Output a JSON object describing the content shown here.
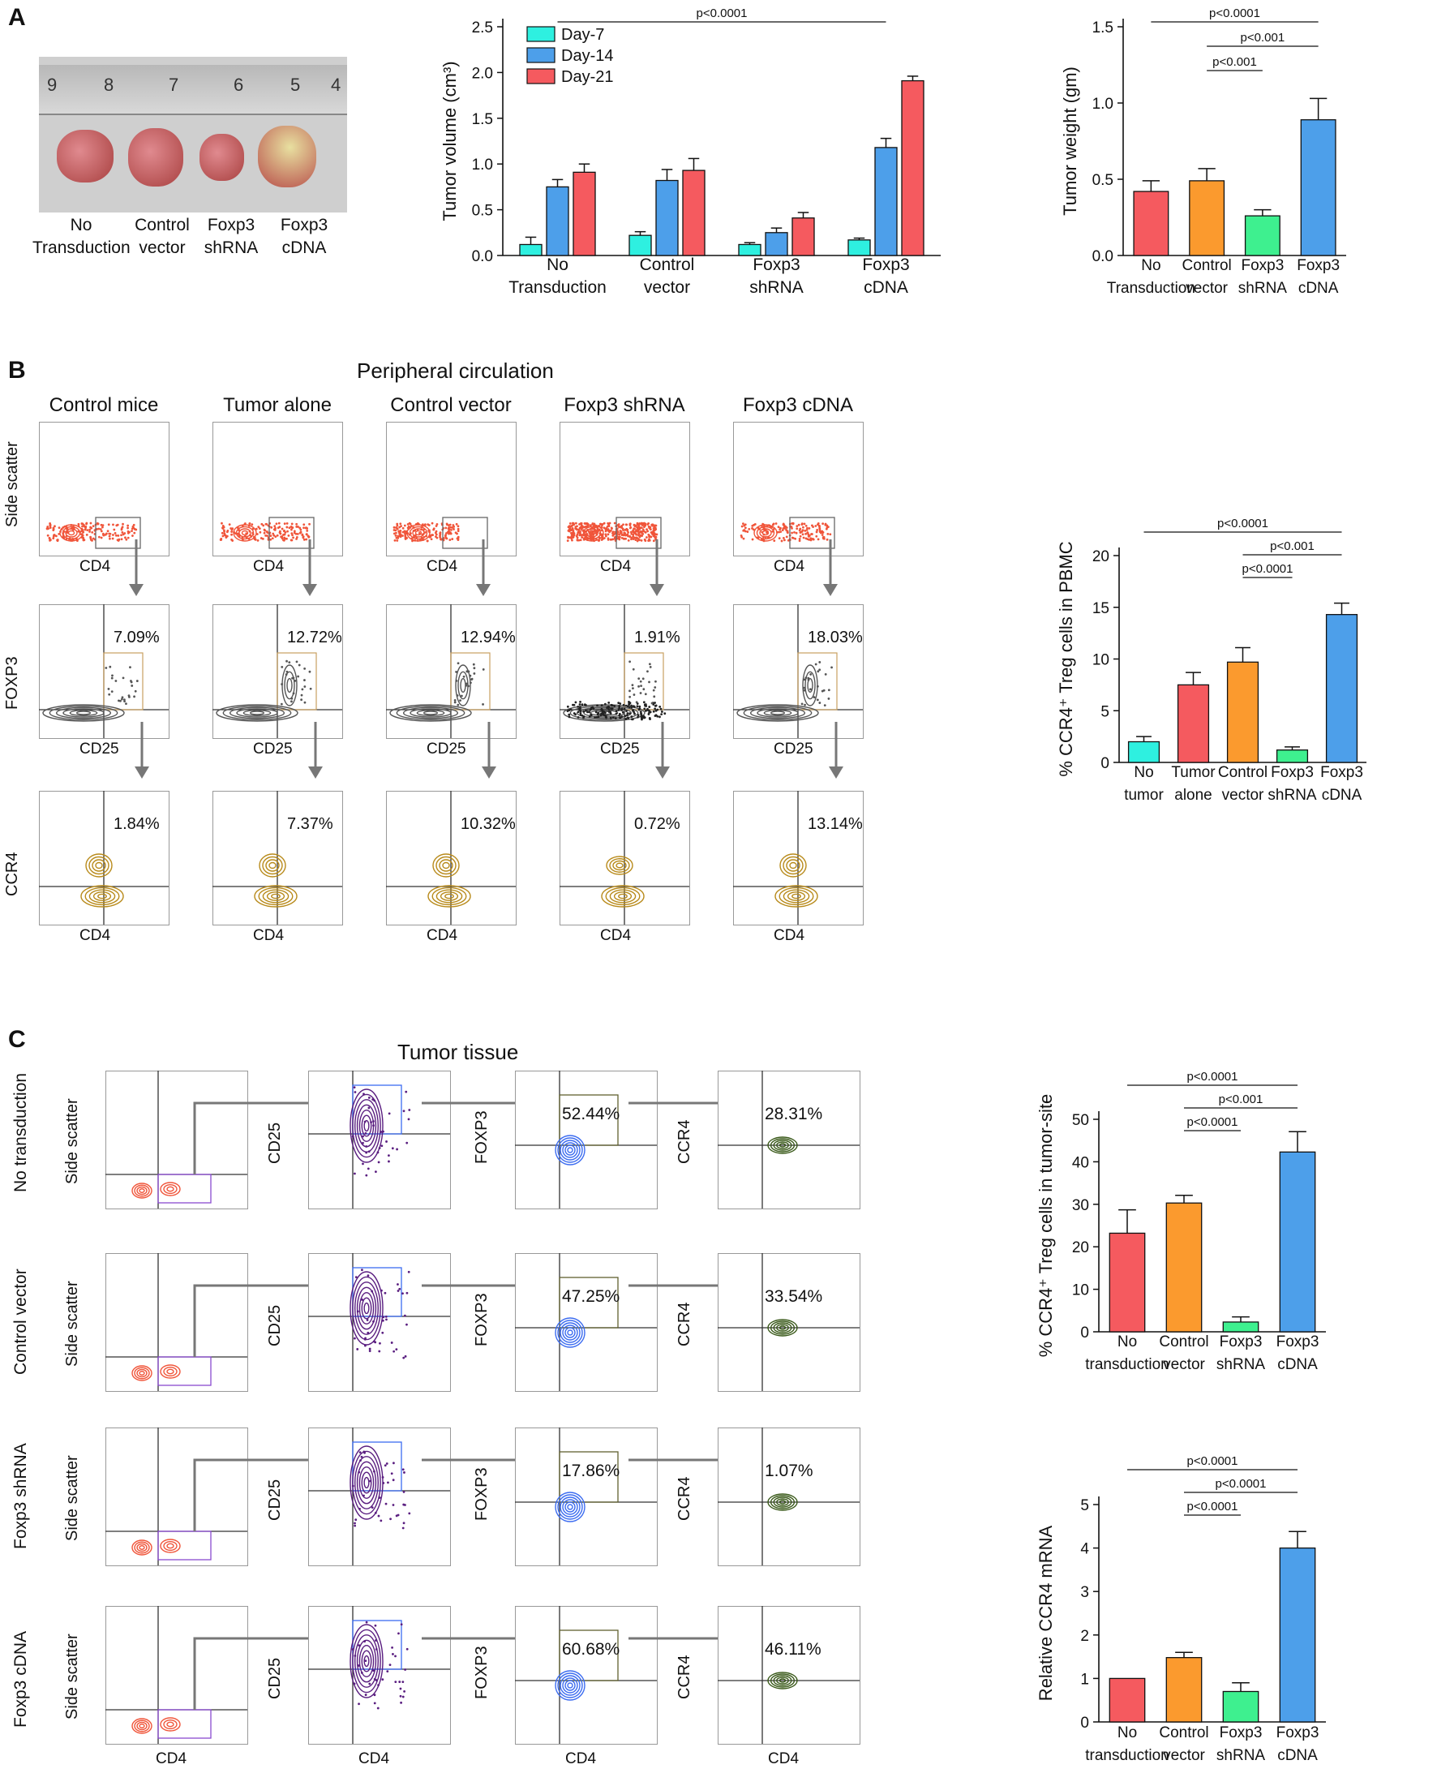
{
  "panels": {
    "A": "A",
    "B": "B",
    "C": "C"
  },
  "photo": {
    "ruler_numbers": [
      "9",
      "8",
      "7",
      "6",
      "5",
      "4"
    ],
    "groups": [
      "No\nTransduction",
      "Control\nvector",
      "Foxp3\nshRNA",
      "Foxp3\ncDNA"
    ]
  },
  "section_titles": {
    "B": "Peripheral circulation",
    "C": "Tumor tissue"
  },
  "b_columns": [
    "Control mice",
    "Tumor alone",
    "Control vector",
    "Foxp3 shRNA",
    "Foxp3 cDNA"
  ],
  "b_axes": {
    "row1": {
      "y": "Side scatter",
      "x": "CD4"
    },
    "row2": {
      "y": "FOXP3",
      "x": "CD25"
    },
    "row3": {
      "y": "CCR4",
      "x": "CD4"
    }
  },
  "b_row2_percents": [
    "7.09%",
    "12.72%",
    "12.94%",
    "1.91%",
    "18.03%"
  ],
  "b_row3_percents": [
    "1.84%",
    "7.37%",
    "10.32%",
    "0.72%",
    "13.14%"
  ],
  "c_rows": [
    "No transduction",
    "Control vector",
    "Foxp3 shRNA",
    "Foxp3 cDNA"
  ],
  "c_axes": {
    "col1": "Side scatter",
    "col2": "CD25",
    "col3": "FOXP3",
    "col4": "CCR4",
    "x": "CD4"
  },
  "c_foxp3_percents": [
    "52.44%",
    "47.25%",
    "17.86%",
    "60.68%"
  ],
  "c_ccr4_percents": [
    "28.31%",
    "33.54%",
    "1.07%",
    "46.11%"
  ],
  "colors": {
    "cyan": "#2ef0e0",
    "blue": "#4d9fea",
    "red": "#f55a5f",
    "orange": "#fb9a2e",
    "green": "#3ef08f",
    "flow_red": "#f0553a",
    "flow_gray": "#555555",
    "flow_gold": "#b88a1a",
    "flow_purple": "#5a1e80",
    "flow_blue": "#3c6cf0",
    "flow_green": "#3a5a1a"
  },
  "chart_data": [
    {
      "type": "bar",
      "ylabel": "Tumor volume (cm³)",
      "categories": [
        "No Transduction",
        "Control vector",
        "Foxp3 shRNA",
        "Foxp3 cDNA"
      ],
      "series": [
        {
          "name": "Day-7",
          "values": [
            0.12,
            0.22,
            0.12,
            0.17
          ],
          "errors": [
            0.08,
            0.04,
            0.02,
            0.02
          ],
          "color": "#2ef0e0"
        },
        {
          "name": "Day-14",
          "values": [
            0.75,
            0.82,
            0.25,
            1.18
          ],
          "errors": [
            0.08,
            0.12,
            0.05,
            0.1
          ],
          "color": "#4d9fea"
        },
        {
          "name": "Day-21",
          "values": [
            0.91,
            0.93,
            0.41,
            1.91
          ],
          "errors": [
            0.09,
            0.13,
            0.06,
            0.05
          ],
          "color": "#f55a5f"
        }
      ],
      "ylim": [
        0,
        2.5
      ],
      "yticks": [
        "0.0",
        "0.5",
        "1.0",
        "1.5",
        "2.0",
        "2.5"
      ],
      "legend": "top-left",
      "sig": [
        {
          "text": "p<0.0001",
          "from": 0,
          "to": 3
        }
      ]
    },
    {
      "type": "bar",
      "ylabel": "Tumor weight (gm)",
      "categories": [
        "No Transduction",
        "Control vector",
        "Foxp3 shRNA",
        "Foxp3 cDNA"
      ],
      "values": [
        0.42,
        0.49,
        0.26,
        0.89
      ],
      "errors": [
        0.07,
        0.08,
        0.04,
        0.14
      ],
      "colors": [
        "#f55a5f",
        "#fb9a2e",
        "#3ef08f",
        "#4d9fea"
      ],
      "ylim": [
        0,
        1.5
      ],
      "yticks": [
        "0.0",
        "0.5",
        "1.0",
        "1.5"
      ],
      "sig": [
        {
          "text": "p<0.0001",
          "from": 0,
          "to": 3
        },
        {
          "text": "p<0.001",
          "from": 1,
          "to": 3
        },
        {
          "text": "p<0.001",
          "from": 1,
          "to": 2
        }
      ]
    },
    {
      "type": "bar",
      "ylabel": "% CCR4⁺ Treg cells in PBMC",
      "categories": [
        "No tumor",
        "Tumor alone",
        "Control vector",
        "Foxp3 shRNA",
        "Foxp3 cDNA"
      ],
      "values": [
        2.0,
        7.5,
        9.7,
        1.2,
        14.3
      ],
      "errors": [
        0.5,
        1.2,
        1.4,
        0.3,
        1.1
      ],
      "colors": [
        "#2ef0e0",
        "#f55a5f",
        "#fb9a2e",
        "#3ef08f",
        "#4d9fea"
      ],
      "ylim": [
        0,
        20
      ],
      "yticks": [
        "0",
        "5",
        "10",
        "15",
        "20"
      ],
      "sig": [
        {
          "text": "p<0.0001",
          "from": 0,
          "to": 4
        },
        {
          "text": "p<0.001",
          "from": 2,
          "to": 4
        },
        {
          "text": "p<0.0001",
          "from": 2,
          "to": 3
        }
      ]
    },
    {
      "type": "bar",
      "ylabel": "% CCR4⁺ Treg cells in tumor-site",
      "categories": [
        "No transduction",
        "Control vector",
        "Foxp3 shRNA",
        "Foxp3 cDNA"
      ],
      "values": [
        23.2,
        30.3,
        2.3,
        42.3
      ],
      "errors": [
        5.5,
        1.8,
        1.2,
        4.8
      ],
      "colors": [
        "#f55a5f",
        "#fb9a2e",
        "#3ef08f",
        "#4d9fea"
      ],
      "ylim": [
        0,
        50
      ],
      "yticks": [
        "0",
        "10",
        "20",
        "30",
        "40",
        "50"
      ],
      "sig": [
        {
          "text": "p<0.0001",
          "from": 0,
          "to": 3
        },
        {
          "text": "p<0.001",
          "from": 1,
          "to": 3
        },
        {
          "text": "p<0.0001",
          "from": 1,
          "to": 2
        }
      ]
    },
    {
      "type": "bar",
      "ylabel": "Relative CCR4 mRNA",
      "categories": [
        "No transduction",
        "Control vector",
        "Foxp3 shRNA",
        "Foxp3 cDNA"
      ],
      "values": [
        1.0,
        1.48,
        0.7,
        4.0
      ],
      "errors": [
        0.0,
        0.12,
        0.2,
        0.38
      ],
      "colors": [
        "#f55a5f",
        "#fb9a2e",
        "#3ef08f",
        "#4d9fea"
      ],
      "ylim": [
        0,
        5
      ],
      "yticks": [
        "0",
        "1",
        "2",
        "3",
        "4",
        "5"
      ],
      "sig": [
        {
          "text": "p<0.0001",
          "from": 0,
          "to": 3
        },
        {
          "text": "p<0.0001",
          "from": 1,
          "to": 3
        },
        {
          "text": "p<0.0001",
          "from": 1,
          "to": 2
        }
      ]
    }
  ]
}
